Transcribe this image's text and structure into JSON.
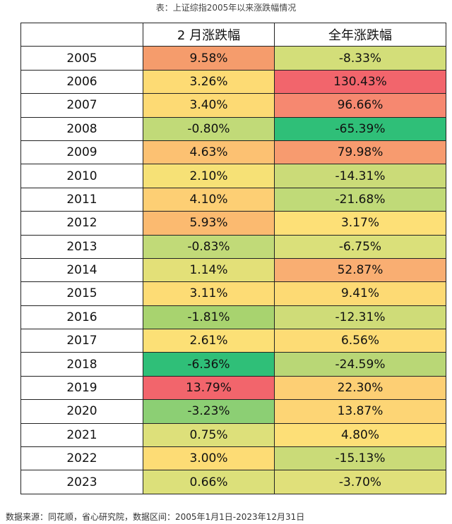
{
  "caption": "表：上证综指2005年以来涨跌幅情况",
  "table": {
    "headers": [
      "",
      "2 月涨跌幅",
      "全年涨跌幅"
    ],
    "rows": [
      {
        "year": "2005",
        "feb": "9.58%",
        "feb_color": "#f59c6c",
        "annual": "-8.33%",
        "annual_color": "#d3de79"
      },
      {
        "year": "2006",
        "feb": "3.26%",
        "feb_color": "#fddb74",
        "annual": "130.43%",
        "annual_color": "#f2656c"
      },
      {
        "year": "2007",
        "feb": "3.40%",
        "feb_color": "#fdda74",
        "annual": "96.66%",
        "annual_color": "#f68870"
      },
      {
        "year": "2008",
        "feb": "-0.80%",
        "feb_color": "#c1da78",
        "annual": "-65.39%",
        "annual_color": "#2fbf78"
      },
      {
        "year": "2009",
        "feb": "4.63%",
        "feb_color": "#fcc172",
        "annual": "79.98%",
        "annual_color": "#f79b6f"
      },
      {
        "year": "2010",
        "feb": "2.10%",
        "feb_color": "#f6e176",
        "annual": "-14.31%",
        "annual_color": "#cbdb78"
      },
      {
        "year": "2011",
        "feb": "4.10%",
        "feb_color": "#fdcf74",
        "annual": "-21.68%",
        "annual_color": "#c0da78"
      },
      {
        "year": "2012",
        "feb": "5.93%",
        "feb_color": "#fbba70",
        "annual": "3.17%",
        "annual_color": "#fde077"
      },
      {
        "year": "2013",
        "feb": "-0.83%",
        "feb_color": "#c1da78",
        "annual": "-6.75%",
        "annual_color": "#dae07a"
      },
      {
        "year": "2014",
        "feb": "1.14%",
        "feb_color": "#e3e078",
        "annual": "52.87%",
        "annual_color": "#f9ae72"
      },
      {
        "year": "2015",
        "feb": "3.11%",
        "feb_color": "#fddc75",
        "annual": "9.41%",
        "annual_color": "#fdda74"
      },
      {
        "year": "2016",
        "feb": "-1.81%",
        "feb_color": "#a8d36f",
        "annual": "-12.31%",
        "annual_color": "#cfdc78"
      },
      {
        "year": "2017",
        "feb": "2.61%",
        "feb_color": "#fce076",
        "annual": "6.56%",
        "annual_color": "#fddc75"
      },
      {
        "year": "2018",
        "feb": "-6.36%",
        "feb_color": "#2fbf78",
        "annual": "-24.59%",
        "annual_color": "#b9d776"
      },
      {
        "year": "2019",
        "feb": "13.79%",
        "feb_color": "#f2656c",
        "annual": "22.30%",
        "annual_color": "#fdcf74"
      },
      {
        "year": "2020",
        "feb": "-3.23%",
        "feb_color": "#8ccf74",
        "annual": "13.87%",
        "annual_color": "#fdd575"
      },
      {
        "year": "2021",
        "feb": "0.75%",
        "feb_color": "#dde07a",
        "annual": "4.80%",
        "annual_color": "#fddf77"
      },
      {
        "year": "2022",
        "feb": "3.00%",
        "feb_color": "#fddc75",
        "annual": "-15.13%",
        "annual_color": "#cadb78"
      },
      {
        "year": "2023",
        "feb": "0.66%",
        "feb_color": "#dce07a",
        "annual": "-3.70%",
        "annual_color": "#e0e07a"
      }
    ]
  },
  "footer": "数据来源：同花顺，省心研究院，数据区间：2005年1月1日-2023年12月31日"
}
